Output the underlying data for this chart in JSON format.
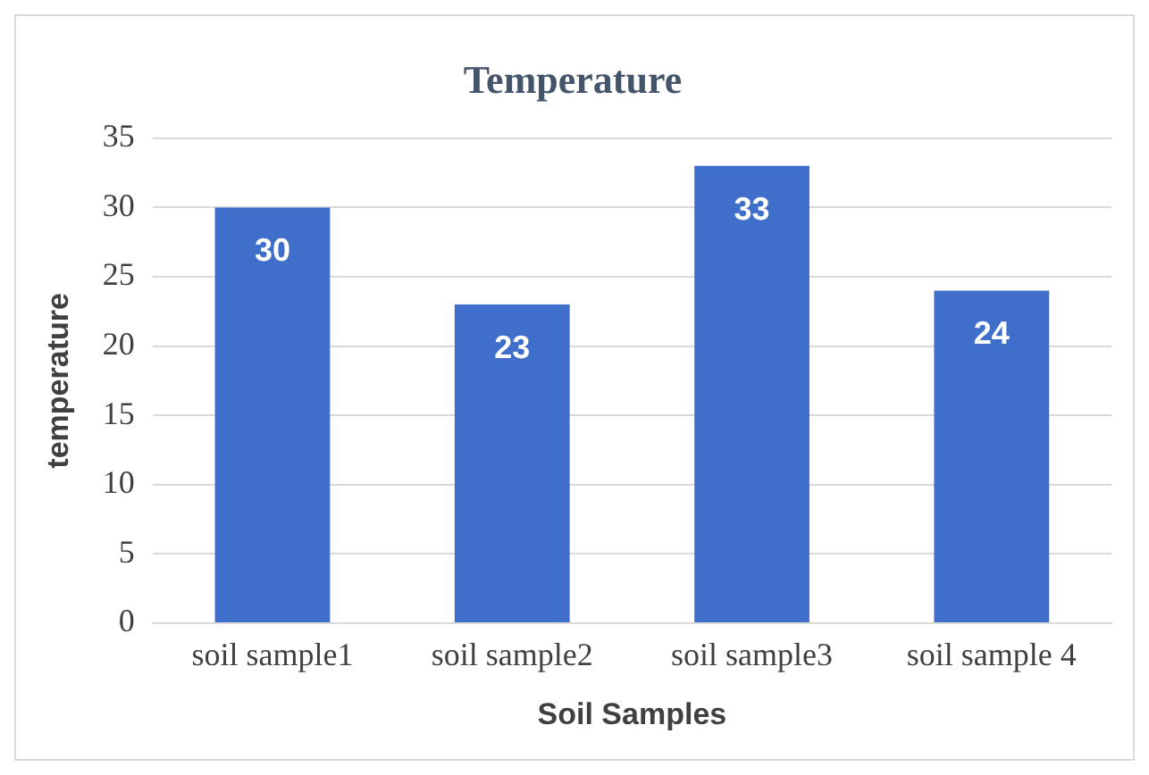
{
  "chart_data": {
    "type": "bar",
    "title": "Temperature",
    "xlabel": "Soil Samples",
    "ylabel": "temperature",
    "categories": [
      "soil sample1",
      "soil sample2",
      "soil sample3",
      "soil sample 4"
    ],
    "values": [
      30,
      23,
      33,
      24
    ],
    "color": "#3f6fcb",
    "ylim": [
      0,
      35
    ],
    "yticks": [
      0,
      5,
      10,
      15,
      20,
      25,
      30,
      35
    ],
    "grid": "y",
    "data_labels": true,
    "legend": false
  }
}
